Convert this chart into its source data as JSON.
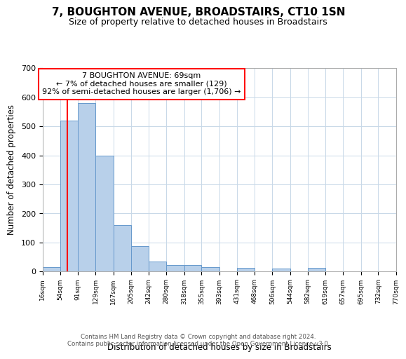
{
  "title": "7, BOUGHTON AVENUE, BROADSTAIRS, CT10 1SN",
  "subtitle": "Size of property relative to detached houses in Broadstairs",
  "xlabel": "Distribution of detached houses by size in Broadstairs",
  "ylabel": "Number of detached properties",
  "bin_edges": [
    16,
    54,
    91,
    129,
    167,
    205,
    242,
    280,
    318,
    355,
    393,
    431,
    468,
    506,
    544,
    582,
    619,
    657,
    695,
    732,
    770
  ],
  "bin_heights": [
    15,
    520,
    580,
    400,
    160,
    87,
    35,
    22,
    22,
    15,
    0,
    12,
    0,
    10,
    0,
    12,
    0,
    0,
    0,
    0
  ],
  "bar_color": "#b8d0ea",
  "bar_edge_color": "#6699cc",
  "property_line_x": 69,
  "property_line_color": "red",
  "annotation_text": "7 BOUGHTON AVENUE: 69sqm\n← 7% of detached houses are smaller (129)\n92% of semi-detached houses are larger (1,706) →",
  "annotation_box_color": "white",
  "annotation_box_edge_color": "red",
  "ylim": [
    0,
    700
  ],
  "yticks": [
    0,
    100,
    200,
    300,
    400,
    500,
    600,
    700
  ],
  "tick_labels": [
    "16sqm",
    "54sqm",
    "91sqm",
    "129sqm",
    "167sqm",
    "205sqm",
    "242sqm",
    "280sqm",
    "318sqm",
    "355sqm",
    "393sqm",
    "431sqm",
    "468sqm",
    "506sqm",
    "544sqm",
    "582sqm",
    "619sqm",
    "657sqm",
    "695sqm",
    "732sqm",
    "770sqm"
  ],
  "footer_line1": "Contains HM Land Registry data © Crown copyright and database right 2024.",
  "footer_line2": "Contains public sector information licensed under the Open Government Licence v3.0.",
  "background_color": "#ffffff",
  "grid_color": "#c8d8e8",
  "title_fontsize": 11,
  "subtitle_fontsize": 9
}
